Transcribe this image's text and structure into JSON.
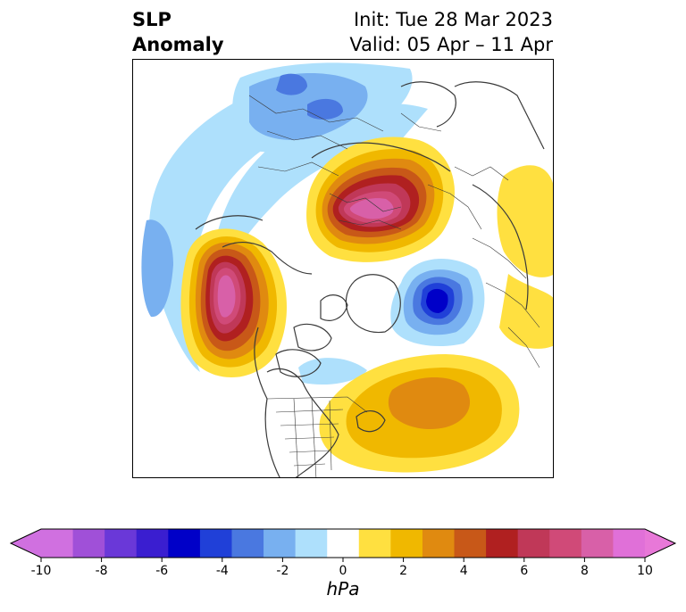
{
  "header": {
    "variable_line1": "SLP",
    "variable_line2": "Anomaly",
    "init_line": "Init: Tue 28 Mar 2023",
    "valid_line": "Valid: 05 Apr – 11 Apr"
  },
  "colorbar": {
    "unit": "hPa",
    "ticks": [
      "-10",
      "-8",
      "-6",
      "-4",
      "-2",
      "0",
      "2",
      "4",
      "6",
      "8",
      "10"
    ],
    "levels": [
      -10,
      -9,
      -8,
      -7,
      -6,
      -5,
      -4,
      -3,
      -2,
      -1,
      1,
      2,
      3,
      4,
      5,
      6,
      7,
      8,
      9,
      10
    ],
    "colors": [
      "#d070e0",
      "#a050d8",
      "#6a38d8",
      "#3a1ed0",
      "#0000c8",
      "#2040d8",
      "#4a78e0",
      "#78b0f0",
      "#aee0fc",
      "#ffffff",
      "#ffe040",
      "#f0b800",
      "#e08a10",
      "#c85818",
      "#b02020",
      "#c03858",
      "#d04a78",
      "#d860a8",
      "#e070d8"
    ],
    "extend_low_color": "#d070e0",
    "extend_high_color": "#e878d8"
  },
  "map": {
    "projection": "north-polar-stereographic",
    "features": [
      "coastlines",
      "country-borders",
      "us-state-borders"
    ],
    "anomaly_centers": [
      {
        "name": "eurasia-high",
        "value_hpa": 10
      },
      {
        "name": "gulf-of-alaska-high",
        "value_hpa": 10
      },
      {
        "name": "greenland-low",
        "value_hpa": -7
      },
      {
        "name": "north-atlantic-high",
        "value_hpa": 5
      },
      {
        "name": "northern-pacific-low",
        "value_hpa": -5
      }
    ]
  }
}
